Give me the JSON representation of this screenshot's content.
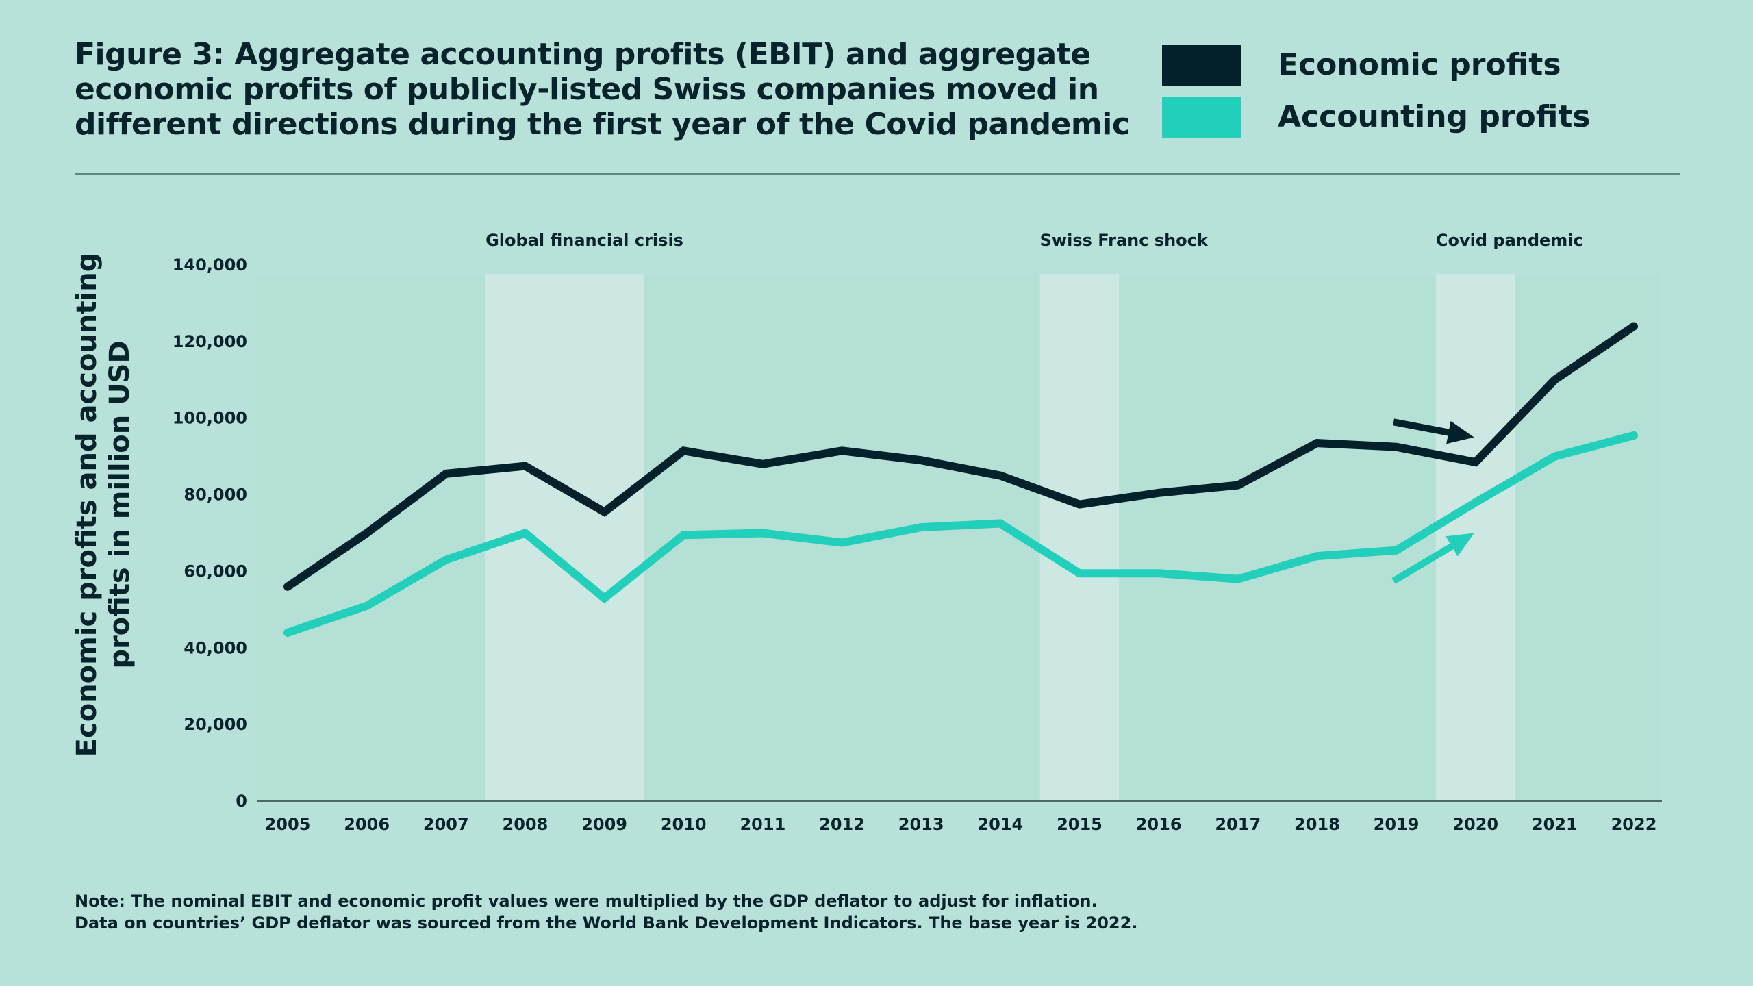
{
  "title": "Figure 3: Aggregate accounting profits (EBIT) and aggregate\neconomic profits of publicly-listed Swiss companies moved in\ndifferent directions during the first year of the Covid pandemic",
  "legend": [
    {
      "label": "Economic profits",
      "color": "#02212b"
    },
    {
      "label": "Accounting profits",
      "color": "#22cfba"
    }
  ],
  "note": [
    "Note: The nominal EBIT and economic profit values were multiplied by the GDP deflator to adjust for inflation.",
    "Data on countries’ GDP deflator was sourced from the World Bank Development Indicators. The base year is 2022."
  ],
  "colors": {
    "background": "#b8e1d9",
    "plot_background": "#b5e0d5",
    "economic": "#02212b",
    "accounting": "#22cfba",
    "highlight": "#cde8e2"
  },
  "chart_data": {
    "type": "line",
    "title": "Figure 3: Aggregate accounting profits (EBIT) and aggregate economic profits of publicly-listed Swiss companies moved in different directions during the first year of the Covid pandemic",
    "xlabel": "",
    "ylabel_lines": [
      "Economic profits and accounting",
      "profits in million USD"
    ],
    "x": [
      2005,
      2006,
      2007,
      2008,
      2009,
      2010,
      2011,
      2012,
      2013,
      2014,
      2015,
      2016,
      2017,
      2018,
      2019,
      2020,
      2021,
      2022
    ],
    "x_labels": [
      "2005",
      "2006",
      "2007",
      "2008",
      "2009",
      "2010",
      "2011",
      "2012",
      "2013",
      "2014",
      "2015",
      "2016",
      "2017",
      "2018",
      "2019",
      "2020",
      "2021",
      "2022"
    ],
    "ylim": [
      0,
      140000
    ],
    "y_ticks": [
      0,
      20000,
      40000,
      60000,
      80000,
      100000,
      120000,
      140000
    ],
    "y_tick_labels": [
      "0",
      "20,000",
      "40,000",
      "60,000",
      "80,000",
      "100,000",
      "120,000",
      "140,000"
    ],
    "series": [
      {
        "name": "Economic profits",
        "color": "#02212b",
        "values": [
          56000,
          70000,
          85500,
          87500,
          75500,
          91500,
          88000,
          91500,
          89000,
          85000,
          77500,
          80500,
          82500,
          93500,
          92500,
          88500,
          110000,
          124000
        ]
      },
      {
        "name": "Accounting profits",
        "color": "#22cfba",
        "values": [
          44000,
          51000,
          63000,
          70000,
          53000,
          69500,
          70000,
          67500,
          71500,
          72500,
          59500,
          59500,
          58000,
          64000,
          65500,
          78000,
          90000,
          95500
        ]
      }
    ],
    "highlights": [
      {
        "label": "Global financial crisis",
        "from": 2007.5,
        "to": 2009.5
      },
      {
        "label": "Swiss Franc shock",
        "from": 2014.5,
        "to": 2015.5
      },
      {
        "label": "Covid pandemic",
        "from": 2019.5,
        "to": 2020.5
      }
    ],
    "arrows": [
      {
        "color": "#02212b",
        "from": [
          2019,
          99000
        ],
        "to": [
          2020,
          95000
        ]
      },
      {
        "color": "#22cfba",
        "from": [
          2019,
          57500
        ],
        "to": [
          2020,
          70000
        ]
      }
    ],
    "grid": false,
    "legend_position": "top-right"
  }
}
